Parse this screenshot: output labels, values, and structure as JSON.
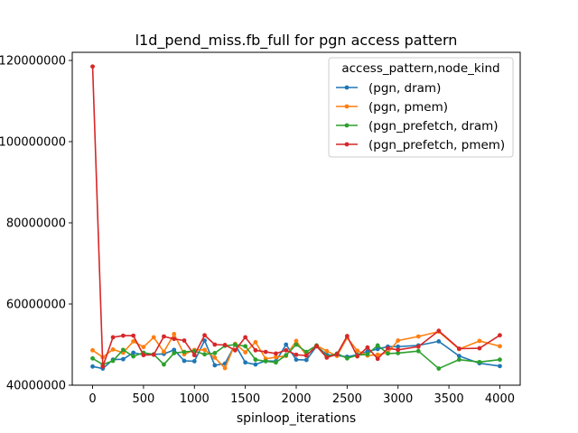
{
  "chart_data": {
    "type": "line",
    "title": "l1d_pend_miss.fb_full for pgn access pattern",
    "xlabel": "spinloop_iterations",
    "ylabel": "",
    "xlim": [
      -200,
      4200
    ],
    "ylim": [
      40000000,
      122000000
    ],
    "xticks": [
      0,
      500,
      1000,
      1500,
      2000,
      2500,
      3000,
      3500,
      4000
    ],
    "xtick_labels": [
      "0",
      "500",
      "1000",
      "1500",
      "2000",
      "2500",
      "3000",
      "3500",
      "4000"
    ],
    "yticks": [
      40000000,
      60000000,
      80000000,
      100000000,
      120000000
    ],
    "ytick_labels": [
      "40000000",
      "60000000",
      "80000000",
      "100000000",
      "120000000"
    ],
    "legend": {
      "title": "access_pattern,node_kind",
      "position": "top-right"
    },
    "x": [
      0,
      100,
      200,
      300,
      400,
      500,
      600,
      700,
      800,
      900,
      1000,
      1100,
      1200,
      1300,
      1400,
      1500,
      1600,
      1700,
      1800,
      1900,
      2000,
      2100,
      2200,
      2300,
      2400,
      2500,
      2600,
      2700,
      2800,
      2900,
      3000,
      3200,
      3400,
      3600,
      3800,
      4000
    ],
    "series": [
      {
        "name": "(pgn, dram)",
        "color": "#1f77b4",
        "values": [
          44600000,
          44100000,
          46300000,
          46400000,
          48000000,
          47500000,
          47600000,
          47700000,
          48700000,
          46000000,
          45900000,
          51000000,
          44900000,
          45300000,
          50000000,
          45600000,
          45100000,
          46000000,
          45900000,
          50000000,
          46300000,
          46200000,
          49600000,
          47500000,
          47300000,
          47000000,
          47500000,
          48300000,
          48900000,
          49500000,
          49500000,
          49800000,
          50800000,
          47200000,
          45400000,
          44700000
        ]
      },
      {
        "name": "(pgn, pmem)",
        "color": "#ff7f0e",
        "values": [
          48600000,
          46900000,
          48800000,
          48000000,
          50800000,
          49400000,
          51800000,
          48200000,
          52600000,
          47600000,
          48700000,
          48700000,
          46800000,
          44200000,
          50200000,
          48100000,
          50600000,
          46500000,
          46900000,
          47200000,
          50900000,
          47300000,
          49800000,
          48400000,
          47200000,
          51700000,
          48500000,
          47300000,
          47500000,
          48000000,
          51000000,
          52000000,
          53200000,
          48900000,
          50900000,
          49600000
        ]
      },
      {
        "name": "(pgn_prefetch, dram)",
        "color": "#2ca02c",
        "values": [
          46600000,
          45100000,
          46000000,
          48700000,
          47100000,
          48000000,
          47600000,
          45100000,
          47900000,
          48200000,
          48400000,
          47600000,
          47900000,
          49700000,
          50000000,
          49600000,
          46300000,
          45900000,
          45600000,
          47400000,
          50000000,
          48200000,
          49800000,
          47000000,
          47800000,
          46600000,
          47400000,
          47600000,
          49800000,
          47800000,
          47900000,
          48400000,
          44100000,
          46300000,
          45700000,
          46300000
        ]
      },
      {
        "name": "(pgn_prefetch, pmem)",
        "color": "#d62728",
        "values": [
          118500000,
          44600000,
          51800000,
          52200000,
          52200000,
          47400000,
          47500000,
          52000000,
          51400000,
          51000000,
          47400000,
          52300000,
          50000000,
          49900000,
          48600000,
          51800000,
          48600000,
          48200000,
          47800000,
          48600000,
          47500000,
          47300000,
          49600000,
          46800000,
          47600000,
          52100000,
          47100000,
          49300000,
          46500000,
          49100000,
          48700000,
          49500000,
          53400000,
          49000000,
          49100000,
          52300000
        ]
      }
    ]
  }
}
